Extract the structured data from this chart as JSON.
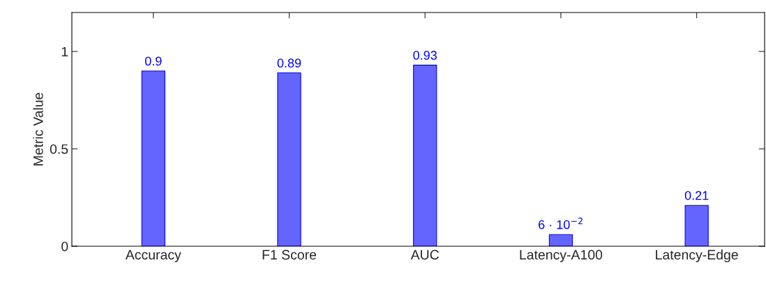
{
  "chart_data": {
    "type": "bar",
    "ylabel": "Metric Value",
    "categories": [
      "Accuracy",
      "F1 Score",
      "AUC",
      "Latency-A100",
      "Latency-Edge"
    ],
    "values": [
      0.9,
      0.89,
      0.93,
      0.06,
      0.21
    ],
    "value_labels": [
      "0.9",
      "0.89",
      "0.93",
      "6 · 10$^{−2}$",
      "0.21"
    ],
    "color": "#6464ff",
    "ylim": [
      0,
      1.2
    ],
    "yticks": [
      0,
      0.5,
      1
    ],
    "grid": false
  }
}
